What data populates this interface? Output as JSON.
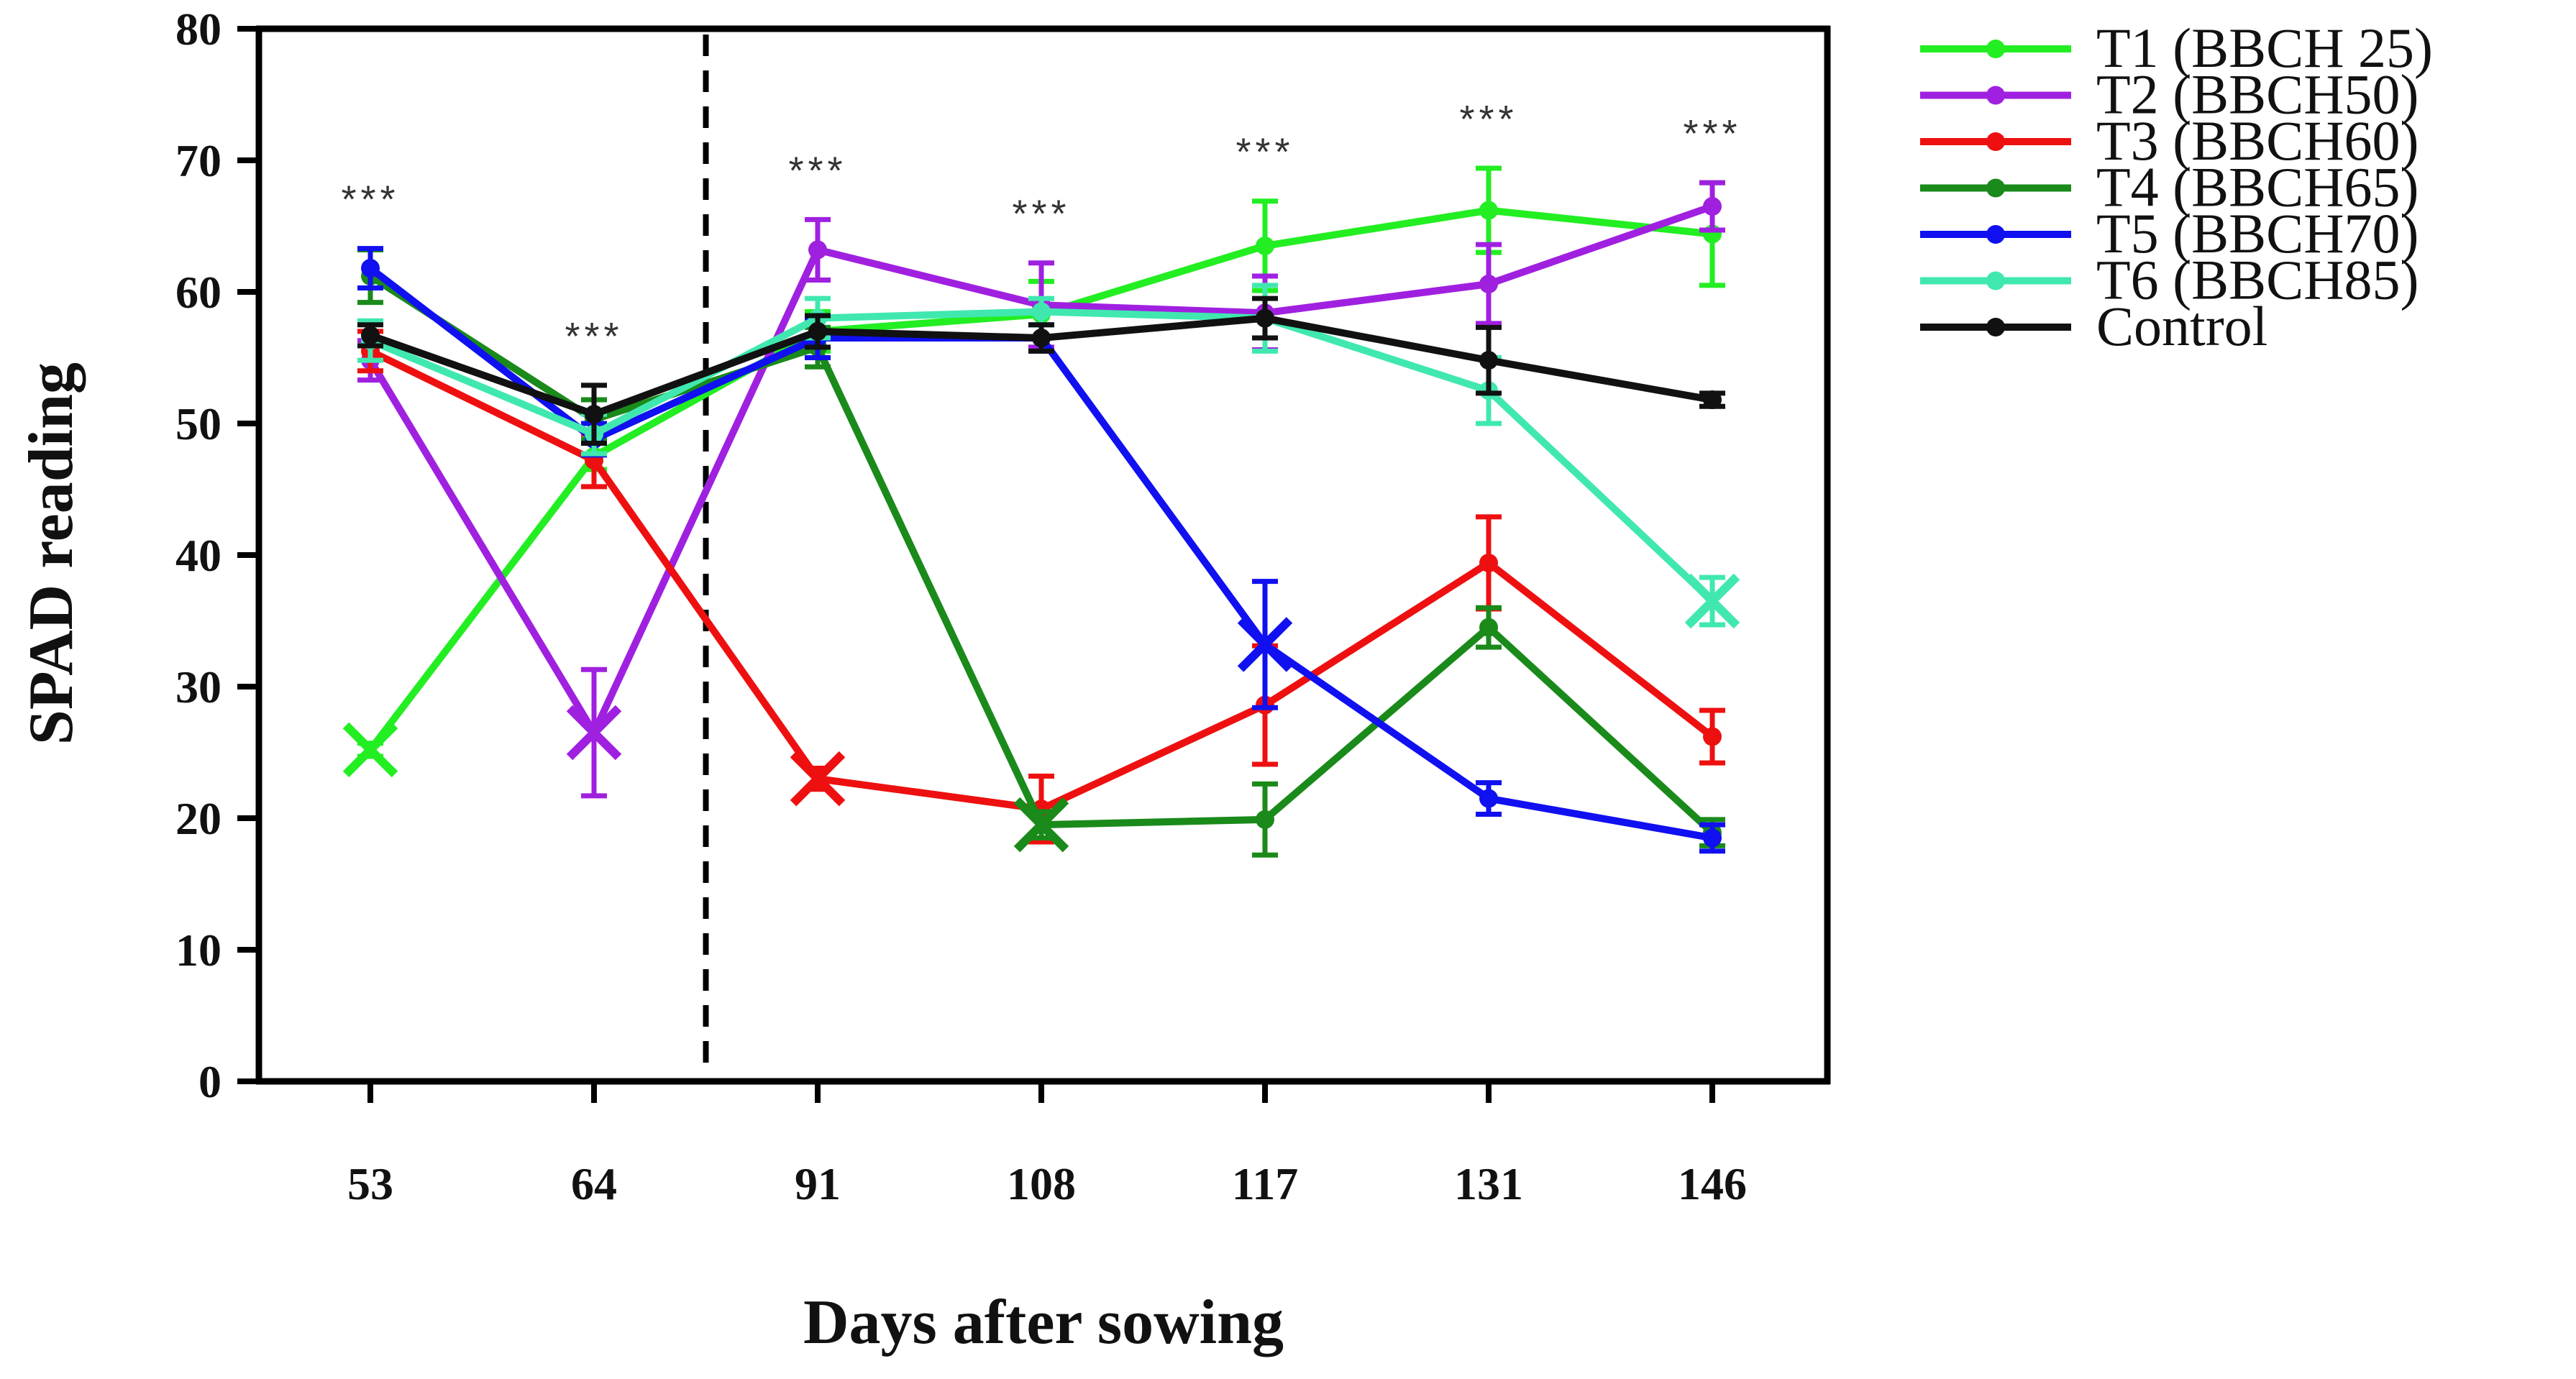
{
  "chart_data": {
    "type": "line",
    "title": "",
    "xlabel": "Days after sowing",
    "ylabel": "SPAD reading",
    "categories": [
      "53",
      "64",
      "91",
      "108",
      "117",
      "131",
      "146"
    ],
    "ylim": [
      0,
      80
    ],
    "yticks": [
      0,
      10,
      20,
      30,
      40,
      50,
      60,
      70,
      80
    ],
    "grid": false,
    "legend_position": "right",
    "divider_after_category": "64",
    "significance": [
      "***",
      "***",
      "***",
      "***",
      "***",
      "***",
      "***"
    ],
    "series": [
      {
        "name": "T1 (BBCH 25)",
        "color": "#22ee22",
        "values": [
          25.2,
          47.5,
          57.0,
          58.3,
          63.5,
          66.2,
          64.4
        ],
        "errors": [
          0.5,
          1.0,
          1.5,
          2.5,
          3.4,
          3.2,
          3.9
        ],
        "marker_start": 0
      },
      {
        "name": "T2 (BBCH50)",
        "color": "#a020e0",
        "values": [
          54.8,
          26.5,
          63.2,
          59.0,
          58.4,
          60.6,
          66.5
        ],
        "errors": [
          1.5,
          4.8,
          2.3,
          3.2,
          2.8,
          3.0,
          1.8
        ],
        "marker_start": 1
      },
      {
        "name": "T3 (BBCH60)",
        "color": "#ee1010",
        "values": [
          55.5,
          47.2,
          23.0,
          20.7,
          28.6,
          39.4,
          26.2
        ],
        "errors": [
          1.5,
          2.0,
          0.8,
          2.5,
          4.5,
          3.5,
          2.0
        ],
        "marker_start": 2
      },
      {
        "name": "T4 (BBCH65)",
        "color": "#1a8a1a",
        "values": [
          61.2,
          50.3,
          55.8,
          19.5,
          19.9,
          34.5,
          18.9
        ],
        "errors": [
          2.0,
          1.5,
          1.5,
          1.0,
          2.7,
          1.5,
          1.0
        ],
        "marker_start": 3
      },
      {
        "name": "T5 (BBCH70)",
        "color": "#1010f0",
        "values": [
          61.8,
          48.8,
          56.5,
          56.5,
          33.2,
          21.5,
          18.5
        ],
        "errors": [
          1.5,
          1.2,
          1.5,
          1.0,
          4.8,
          1.2,
          1.0
        ],
        "marker_start": 4
      },
      {
        "name": "T6 (BBCH85)",
        "color": "#40e8b0",
        "values": [
          56.3,
          49.2,
          58.0,
          58.5,
          58.0,
          52.5,
          36.5
        ],
        "errors": [
          1.5,
          1.5,
          1.5,
          1.0,
          2.5,
          2.5,
          1.8
        ],
        "marker_start": 6
      },
      {
        "name": "Control",
        "color": "#111111",
        "values": [
          56.7,
          50.7,
          57.0,
          56.5,
          58.0,
          54.8,
          51.8
        ],
        "errors": [
          0.8,
          2.2,
          1.2,
          1.0,
          1.5,
          2.5,
          0.5
        ],
        "marker_start": 7
      }
    ]
  }
}
